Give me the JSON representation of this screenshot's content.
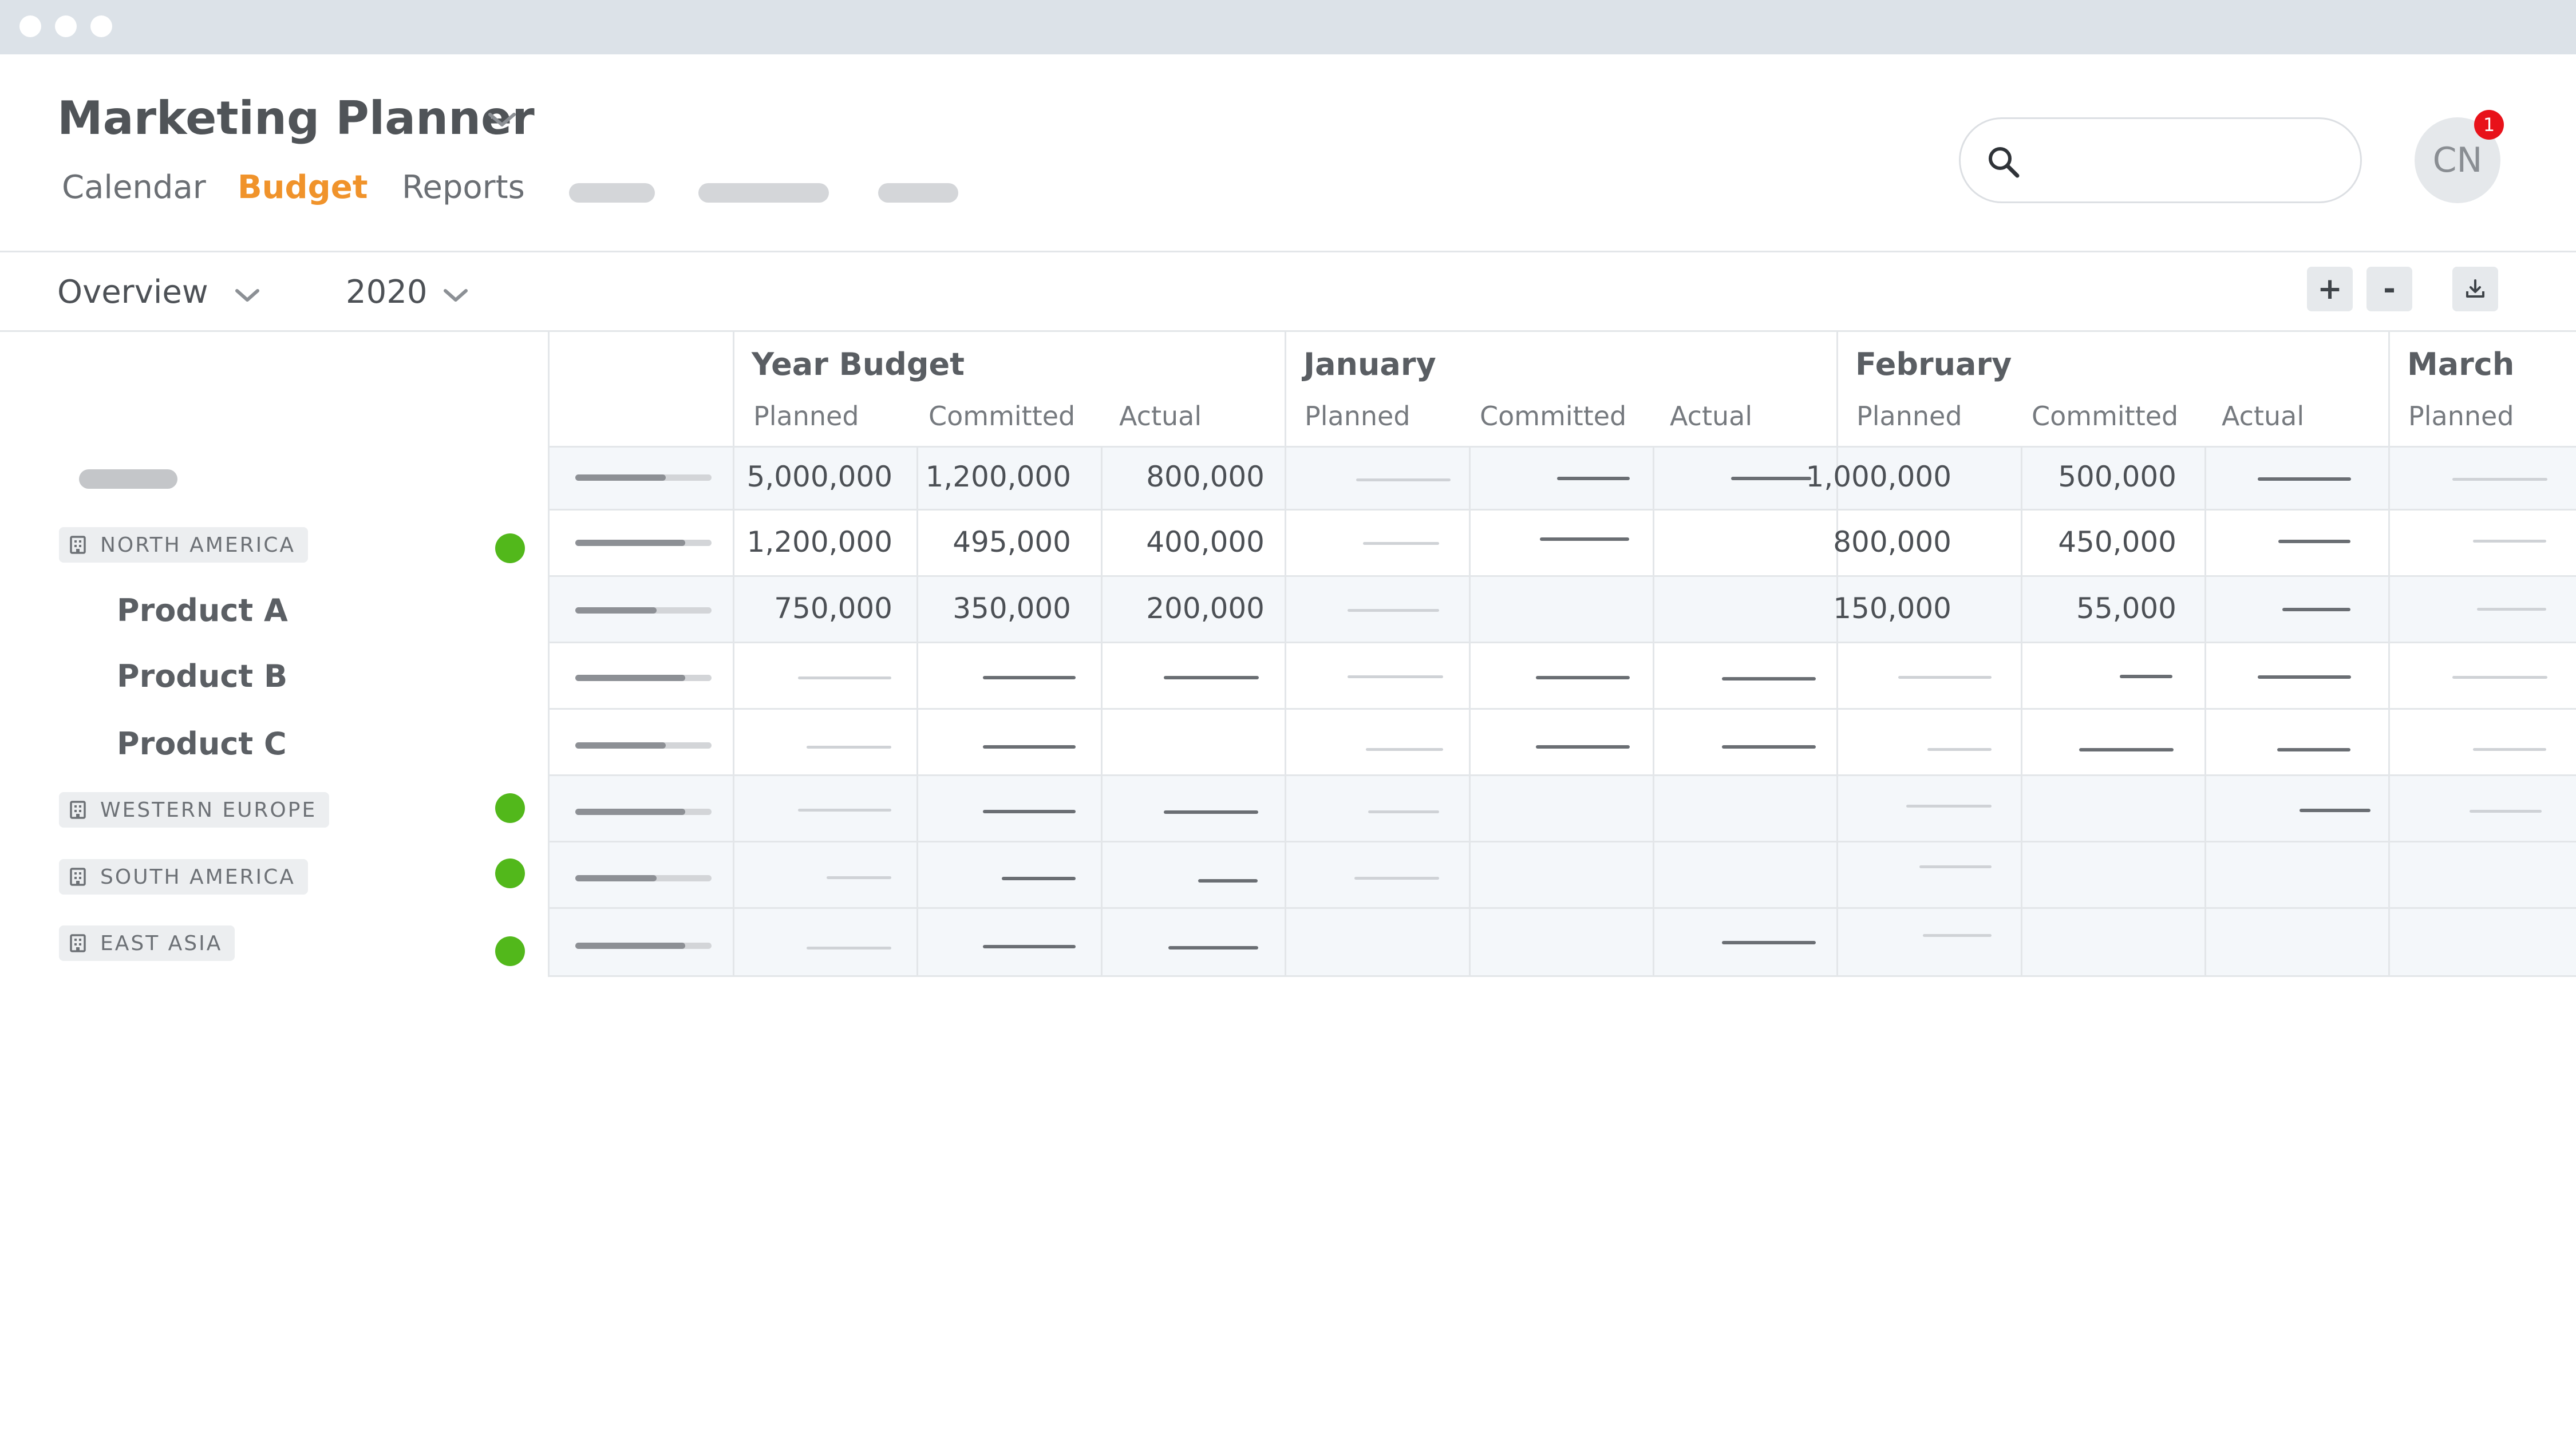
{
  "window": {
    "controls": [
      "close",
      "minimize",
      "maximize"
    ]
  },
  "app": {
    "title": "Marketing Planner",
    "title_menu_icon": "chevron-down-icon"
  },
  "nav": {
    "tabs": [
      {
        "label": "Calendar"
      },
      {
        "label": "Budget",
        "active": true
      },
      {
        "label": "Reports"
      }
    ]
  },
  "search": {
    "placeholder": "",
    "value": "",
    "icon": "search-icon"
  },
  "user": {
    "initials": "CN",
    "notification_count": "1"
  },
  "toolbar": {
    "view": "Overview",
    "year": "2020",
    "zoom_in": "+",
    "zoom_out": "-",
    "export_icon": "download-icon"
  },
  "regions": [
    {
      "label": "NORTH AMERICA",
      "status_color": "#52b81b",
      "products": [
        "Product A",
        "Product B",
        "Product C"
      ]
    },
    {
      "label": "WESTERN EUROPE",
      "status_color": "#52b81b"
    },
    {
      "label": "SOUTH AMERICA",
      "status_color": "#52b81b"
    },
    {
      "label": "EAST ASIA",
      "status_color": "#52b81b"
    }
  ],
  "table": {
    "groups": [
      {
        "title": "Year Budget",
        "columns": [
          "Planned",
          "Committed",
          "Actual"
        ]
      },
      {
        "title": "January",
        "columns": [
          "Planned",
          "Committed",
          "Actual"
        ]
      },
      {
        "title": "February",
        "columns": [
          "Planned",
          "Committed",
          "Actual"
        ]
      },
      {
        "title": "March",
        "columns": [
          "Planned"
        ]
      }
    ],
    "rows": [
      {
        "year_budget": {
          "planned": "5,000,000",
          "committed": "1,200,000",
          "actual": "800,000"
        },
        "february": {
          "planned": "1,000,000",
          "committed": "500,000"
        }
      },
      {
        "year_budget": {
          "planned": "1,200,000",
          "committed": "495,000",
          "actual": "400,000"
        },
        "february": {
          "planned": "800,000",
          "committed": "450,000"
        }
      },
      {
        "year_budget": {
          "planned": "750,000",
          "committed": "350,000",
          "actual": "200,000"
        },
        "february": {
          "planned": "150,000",
          "committed": "55,000"
        }
      }
    ]
  },
  "colors": {
    "accent": "#f0932b",
    "status_ok": "#52b81b",
    "badge": "#e8121a",
    "row_shade": "#f4f7fa"
  }
}
